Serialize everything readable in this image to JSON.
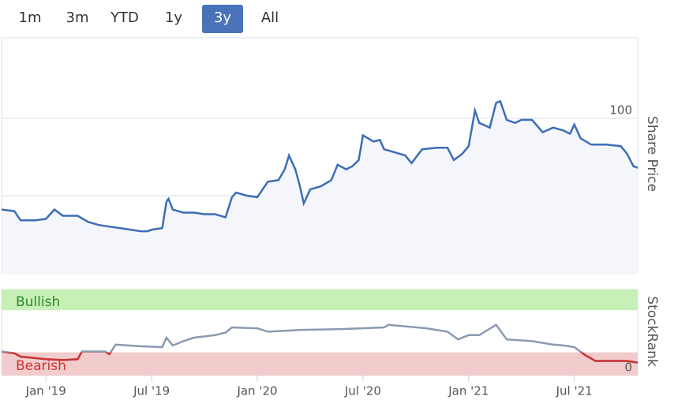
{
  "range_buttons": {
    "labels": [
      "1m",
      "3m",
      "YTD",
      "1y",
      "3y",
      "All"
    ],
    "selected": 4
  },
  "chart_data": [
    {
      "type": "area",
      "y_axis_title": "Share Price",
      "color": "#3d6db5",
      "fill": "#f4f6fb",
      "xlim": [
        2018.79,
        2021.8
      ],
      "ylim": [
        0,
        152
      ],
      "yticks": [
        0,
        50,
        100
      ],
      "grid": true,
      "x": [
        2018.79,
        2018.85,
        2018.88,
        2018.95,
        2019.0,
        2019.04,
        2019.08,
        2019.15,
        2019.2,
        2019.25,
        2019.3,
        2019.35,
        2019.4,
        2019.45,
        2019.48,
        2019.5,
        2019.55,
        2019.57,
        2019.58,
        2019.6,
        2019.65,
        2019.7,
        2019.75,
        2019.8,
        2019.85,
        2019.88,
        2019.9,
        2019.95,
        2020.0,
        2020.05,
        2020.1,
        2020.13,
        2020.15,
        2020.18,
        2020.2,
        2020.22,
        2020.25,
        2020.3,
        2020.35,
        2020.38,
        2020.42,
        2020.45,
        2020.48,
        2020.5,
        2020.55,
        2020.58,
        2020.6,
        2020.65,
        2020.7,
        2020.73,
        2020.78,
        2020.85,
        2020.9,
        2020.93,
        2020.97,
        2021.0,
        2021.03,
        2021.05,
        2021.1,
        2021.13,
        2021.15,
        2021.18,
        2021.22,
        2021.25,
        2021.3,
        2021.35,
        2021.4,
        2021.45,
        2021.48,
        2021.5,
        2021.53,
        2021.58,
        2021.65,
        2021.72,
        2021.75,
        2021.78,
        2021.8
      ],
      "values": [
        41,
        40,
        34,
        34,
        35,
        41,
        37,
        37,
        33,
        31,
        30,
        29,
        28,
        27,
        27,
        28,
        29,
        46,
        48,
        41,
        39,
        39,
        38,
        38,
        36,
        49,
        52,
        50,
        49,
        59,
        60,
        67,
        76,
        67,
        57,
        45,
        54,
        56,
        60,
        70,
        67,
        69,
        73,
        89,
        85,
        86,
        80,
        78,
        76,
        71,
        80,
        81,
        81,
        73,
        77,
        82,
        105,
        97,
        94,
        110,
        111,
        99,
        97,
        99,
        99,
        91,
        94,
        92,
        90,
        96,
        87,
        83,
        83,
        82,
        77,
        69,
        68
      ]
    },
    {
      "type": "line",
      "y_axis_title": "StockRank",
      "color": "#8a9ab0",
      "bearish_color": "#cc3333",
      "xlim": [
        2018.79,
        2021.8
      ],
      "ylim": [
        0,
        100
      ],
      "yticks": [
        0
      ],
      "xticks": [
        {
          "value": 2019,
          "label": "Jan '19"
        },
        {
          "value": 2019.5,
          "label": "Jul '19"
        },
        {
          "value": 2020,
          "label": "Jan '20"
        },
        {
          "value": 2020.5,
          "label": "Jul '20"
        },
        {
          "value": 2021,
          "label": "Jan '21"
        },
        {
          "value": 2021.5,
          "label": "Jul '21"
        }
      ],
      "bands": [
        {
          "label": "Bullish",
          "from": 76,
          "to": 100,
          "color": "#c6f0b6",
          "text_color": "#2a8a2a"
        },
        {
          "label": "Bearish",
          "from": 0,
          "to": 27,
          "color": "#f2cccc",
          "text_color": "#cc3333"
        }
      ],
      "x": [
        2018.79,
        2018.85,
        2018.88,
        2019.0,
        2019.08,
        2019.15,
        2019.17,
        2019.28,
        2019.3,
        2019.33,
        2019.45,
        2019.55,
        2019.57,
        2019.6,
        2019.65,
        2019.7,
        2019.8,
        2019.85,
        2019.88,
        2020.0,
        2020.05,
        2020.2,
        2020.4,
        2020.6,
        2020.62,
        2020.8,
        2020.9,
        2020.95,
        2021.0,
        2021.05,
        2021.13,
        2021.18,
        2021.3,
        2021.4,
        2021.45,
        2021.5,
        2021.55,
        2021.6,
        2021.7,
        2021.75,
        2021.8
      ],
      "values": [
        28,
        26,
        22,
        19,
        18,
        19,
        28,
        28,
        25,
        36,
        34,
        33,
        44,
        35,
        40,
        44,
        47,
        50,
        56,
        55,
        51,
        53,
        54,
        56,
        59,
        55,
        51,
        42,
        47,
        47,
        59,
        42,
        40,
        36,
        35,
        33,
        24,
        17,
        17,
        17,
        15
      ]
    }
  ]
}
